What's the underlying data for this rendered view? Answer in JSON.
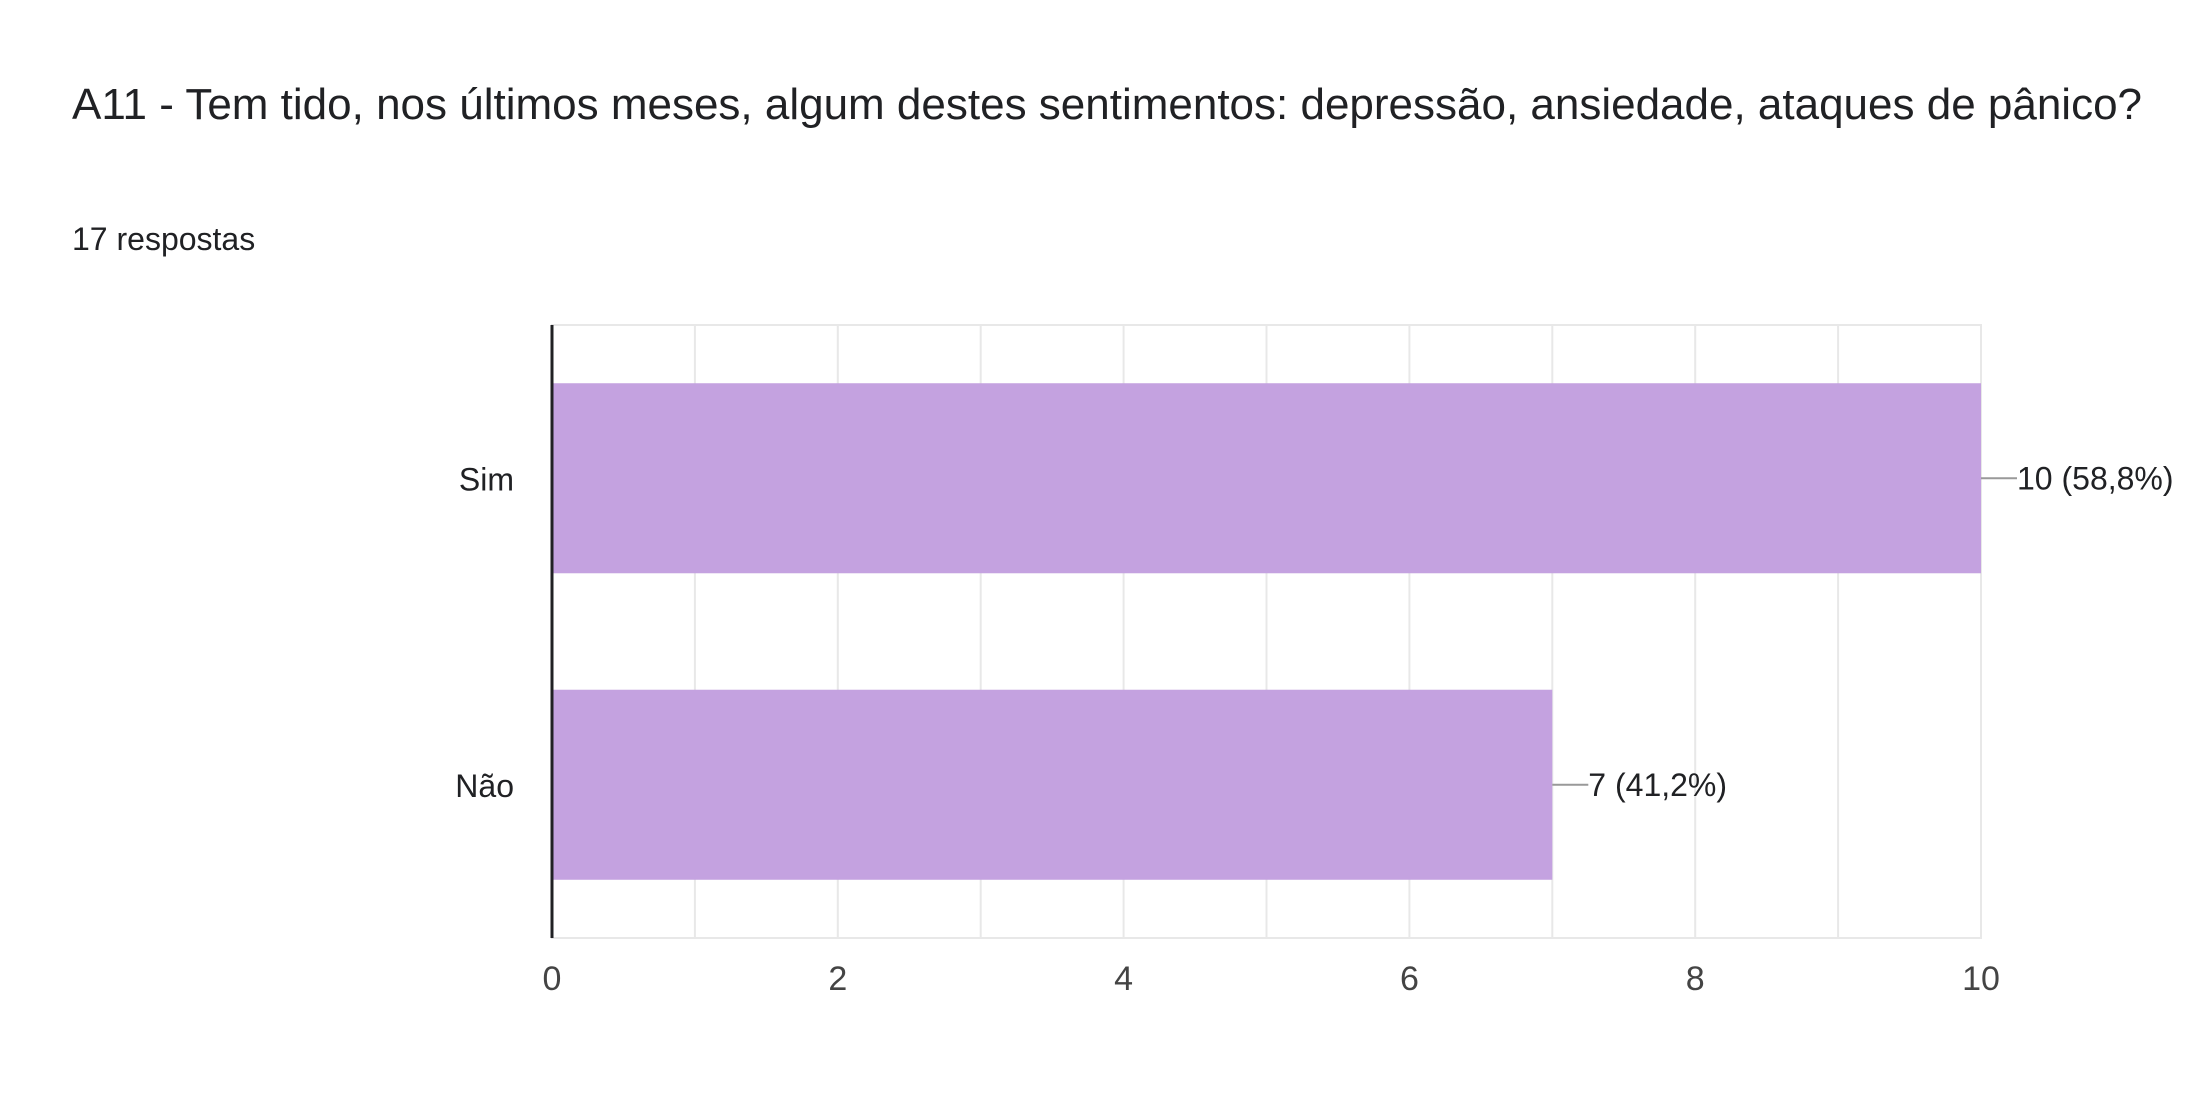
{
  "header": {
    "title": "A11 - Tem tido, nos últimos meses, algum destes sentimentos: depressão, ansiedade, ataques de pânico?",
    "responses": "17 respostas"
  },
  "colors": {
    "bar": "#c4a2e0",
    "grid": "#e8e8e8",
    "axis": "#202124",
    "leader": "#999999"
  },
  "chart_data": {
    "type": "bar",
    "orientation": "horizontal",
    "categories": [
      "Sim",
      "Não"
    ],
    "values": [
      10,
      7
    ],
    "data_labels": [
      "10 (58,8%)",
      "7 (41,2%)"
    ],
    "xlim": [
      0,
      10
    ],
    "x_ticks": [
      0,
      2,
      4,
      6,
      8,
      10
    ],
    "grid": true,
    "title": "",
    "xlabel": "",
    "ylabel": ""
  }
}
